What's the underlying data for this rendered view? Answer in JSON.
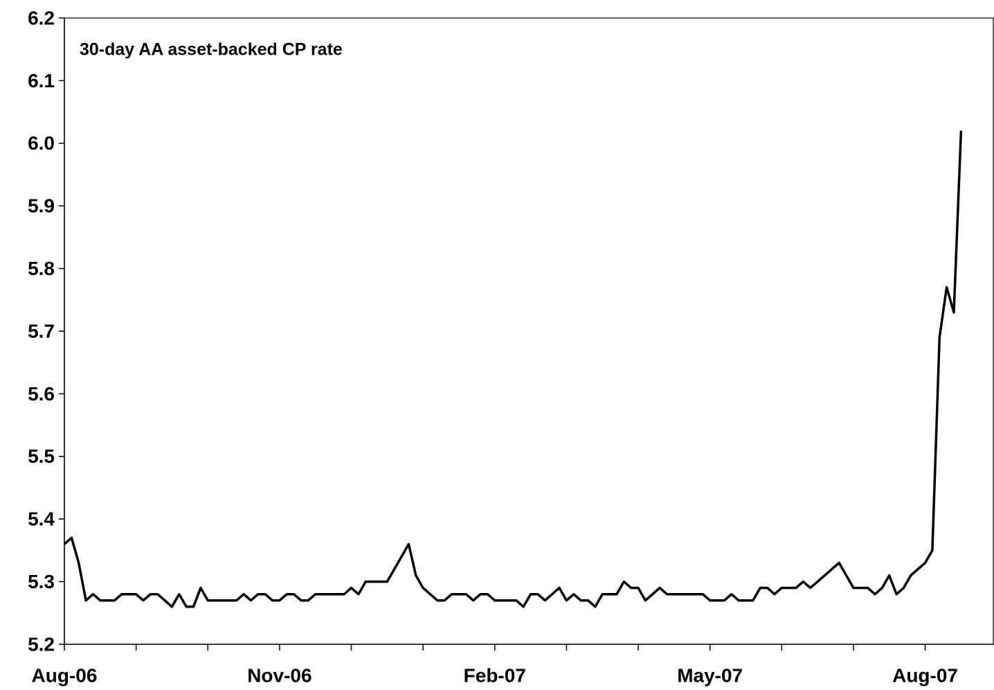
{
  "chart_data": {
    "type": "line",
    "title": "30-day AA asset-backed CP rate",
    "categories": [
      "Aug-06",
      null,
      null,
      null,
      null,
      null,
      null,
      null,
      null,
      null,
      null,
      null,
      null,
      null,
      null,
      null,
      null,
      null,
      null,
      null,
      null,
      null,
      null,
      null,
      null,
      null,
      null,
      null,
      null,
      null,
      "Nov-06",
      null,
      null,
      null,
      null,
      null,
      null,
      null,
      null,
      null,
      null,
      null,
      null,
      null,
      null,
      null,
      null,
      null,
      null,
      null,
      null,
      null,
      null,
      null,
      null,
      null,
      null,
      null,
      null,
      null,
      "Feb-07",
      null,
      null,
      null,
      null,
      null,
      null,
      null,
      null,
      null,
      null,
      null,
      null,
      null,
      null,
      null,
      null,
      null,
      null,
      null,
      null,
      null,
      null,
      null,
      null,
      null,
      null,
      null,
      null,
      null,
      "May-07",
      null,
      null,
      null,
      null,
      null,
      null,
      null,
      null,
      null,
      null,
      null,
      null,
      null,
      null,
      null,
      null,
      null,
      null,
      null,
      null,
      null,
      null,
      null,
      null,
      null,
      null,
      null,
      null,
      null,
      "Aug-07",
      null,
      null,
      null,
      null,
      null
    ],
    "series": [
      {
        "name": null,
        "color": "#000000",
        "values": [
          5.36,
          5.37,
          5.33,
          5.27,
          5.28,
          5.27,
          5.27,
          5.27,
          5.28,
          5.28,
          5.28,
          5.27,
          5.28,
          5.28,
          5.27,
          5.26,
          5.28,
          5.26,
          5.26,
          5.29,
          5.27,
          5.27,
          5.27,
          5.27,
          5.27,
          5.28,
          5.27,
          5.28,
          5.28,
          5.27,
          5.27,
          5.28,
          5.28,
          5.27,
          5.27,
          5.28,
          5.28,
          5.28,
          5.28,
          5.28,
          5.29,
          5.28,
          5.3,
          5.3,
          5.3,
          5.3,
          5.32,
          5.34,
          5.36,
          5.31,
          5.29,
          5.28,
          5.27,
          5.27,
          5.28,
          5.28,
          5.28,
          5.27,
          5.28,
          5.28,
          5.27,
          5.27,
          5.27,
          5.27,
          5.26,
          5.28,
          5.28,
          5.27,
          5.28,
          5.29,
          5.27,
          5.28,
          5.27,
          5.27,
          5.26,
          5.28,
          5.28,
          5.28,
          5.3,
          5.29,
          5.29,
          5.27,
          5.28,
          5.29,
          5.28,
          5.28,
          5.28,
          5.28,
          5.28,
          5.28,
          5.27,
          5.27,
          5.27,
          5.28,
          5.27,
          5.27,
          5.27,
          5.29,
          5.29,
          5.28,
          5.29,
          5.29,
          5.29,
          5.3,
          5.29,
          5.3,
          5.31,
          5.32,
          5.33,
          5.31,
          5.29,
          5.29,
          5.29,
          5.28,
          5.29,
          5.31,
          5.28,
          5.29,
          5.31,
          5.32,
          5.33,
          5.35,
          5.69,
          5.77,
          5.73,
          6.02
        ]
      }
    ],
    "ylim": [
      5.2,
      6.2
    ],
    "yticks": [
      5.2,
      5.3,
      5.4,
      5.5,
      5.6,
      5.7,
      5.8,
      5.9,
      {
        "value": 6,
        "label": "6.0"
      },
      6.1,
      6.2
    ]
  }
}
